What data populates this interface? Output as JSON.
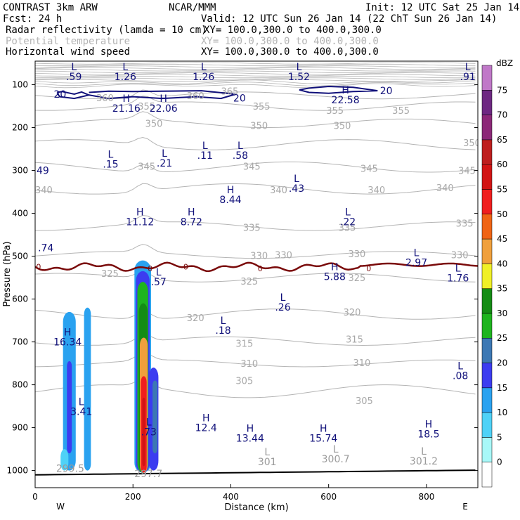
{
  "header": {
    "model": "CONTRAST  3km ARW",
    "org": "NCAR/MMM",
    "init": "Init: 12 UTC Sat 25 Jan 14",
    "fcst": "Fcst:   24 h",
    "valid": "Valid: 12 UTC Sun 26 Jan 14 (22 ChT Sun 26 Jan 14)",
    "fields": [
      {
        "name": "Radar reflectivity (lamda = 10 cm)",
        "xy": "XY= 100.0,300.0 to 400.0,300.0",
        "color": "#000000"
      },
      {
        "name": "Potential temperature",
        "xy": "XY= 100.0,300.0 to 400.0,300.0",
        "color": "#b4b4b4"
      },
      {
        "name": "Horizontal wind speed",
        "xy": "XY= 100.0,300.0 to 400.0,300.0",
        "color": "#10107a"
      }
    ]
  },
  "chart_data": {
    "type": "cross-section",
    "xlabel": "Distance (km)",
    "ylabel": "Pressure (hPa)",
    "xlim": [
      0,
      905
    ],
    "ylim": [
      1040,
      45
    ],
    "x_ticks": [
      0,
      200,
      400,
      600,
      800
    ],
    "y_ticks": [
      100,
      200,
      300,
      400,
      500,
      600,
      700,
      800,
      900,
      1000
    ],
    "x_ends": [
      "W",
      "E"
    ],
    "colorbar": {
      "unit": "dBZ",
      "levels": [
        0,
        5,
        10,
        15,
        20,
        25,
        30,
        35,
        40,
        45,
        50,
        55,
        60,
        65,
        70,
        75
      ],
      "colors": [
        "#ffffff",
        "#a8f8f8",
        "#4fd2f7",
        "#2aa2f0",
        "#3c3cf0",
        "#3c78b4",
        "#1eb41e",
        "#148c14",
        "#f0f028",
        "#f0a03c",
        "#f06414",
        "#f01e1e",
        "#d21414",
        "#be1e1e",
        "#8c2878",
        "#6e2882",
        "#c078c8"
      ]
    },
    "theta_labels": [
      {
        "x": 125,
        "p": 130,
        "v": "360"
      },
      {
        "x": 310,
        "p": 125,
        "v": "360"
      },
      {
        "x": 380,
        "p": 115,
        "v": "365"
      },
      {
        "x": 210,
        "p": 150,
        "v": "355"
      },
      {
        "x": 445,
        "p": 150,
        "v": "355"
      },
      {
        "x": 595,
        "p": 160,
        "v": "355"
      },
      {
        "x": 730,
        "p": 160,
        "v": "355"
      },
      {
        "x": 225,
        "p": 190,
        "v": "350"
      },
      {
        "x": 440,
        "p": 195,
        "v": "350"
      },
      {
        "x": 610,
        "p": 195,
        "v": "350"
      },
      {
        "x": 875,
        "p": 235,
        "v": "350"
      },
      {
        "x": 210,
        "p": 290,
        "v": "345"
      },
      {
        "x": 425,
        "p": 290,
        "v": "345"
      },
      {
        "x": 665,
        "p": 295,
        "v": "345"
      },
      {
        "x": 865,
        "p": 300,
        "v": "345"
      },
      {
        "x": 480,
        "p": 345,
        "v": "340"
      },
      {
        "x": 680,
        "p": 345,
        "v": "340"
      },
      {
        "x": 820,
        "p": 340,
        "v": "340"
      },
      {
        "x": 0,
        "p": 345,
        "v": "340"
      },
      {
        "x": 425,
        "p": 433,
        "v": "335"
      },
      {
        "x": 620,
        "p": 433,
        "v": "335"
      },
      {
        "x": 860,
        "p": 423,
        "v": "335"
      },
      {
        "x": 440,
        "p": 498,
        "v": "330"
      },
      {
        "x": 490,
        "p": 497,
        "v": "330"
      },
      {
        "x": 640,
        "p": 494,
        "v": "330"
      },
      {
        "x": 850,
        "p": 497,
        "v": "330"
      },
      {
        "x": 135,
        "p": 540,
        "v": "325"
      },
      {
        "x": 420,
        "p": 558,
        "v": "325"
      },
      {
        "x": 640,
        "p": 550,
        "v": "325"
      },
      {
        "x": 310,
        "p": 643,
        "v": "320"
      },
      {
        "x": 630,
        "p": 630,
        "v": "320"
      },
      {
        "x": 410,
        "p": 703,
        "v": "315"
      },
      {
        "x": 635,
        "p": 693,
        "v": "315"
      },
      {
        "x": 420,
        "p": 750,
        "v": "310"
      },
      {
        "x": 650,
        "p": 748,
        "v": "310"
      },
      {
        "x": 410,
        "p": 790,
        "v": "305"
      },
      {
        "x": 655,
        "p": 837,
        "v": "305"
      }
    ],
    "wind_labels": [
      {
        "x": 38,
        "p": 122,
        "v": "20"
      },
      {
        "x": 405,
        "p": 131,
        "v": "20"
      },
      {
        "x": 705,
        "p": 114,
        "v": "20"
      },
      {
        "x": 2,
        "p": 523,
        "v": "0"
      },
      {
        "x": 230,
        "p": 527,
        "v": "0"
      },
      {
        "x": 303,
        "p": 523,
        "v": "0"
      },
      {
        "x": 455,
        "p": 527,
        "v": "0"
      },
      {
        "x": 677,
        "p": 527,
        "v": "0"
      }
    ],
    "hl_labels": [
      {
        "x": 65,
        "p": 66,
        "t": "L",
        "v": ".59"
      },
      {
        "x": 170,
        "p": 66,
        "t": "L",
        "v": "1.26"
      },
      {
        "x": 330,
        "p": 66,
        "t": "L",
        "v": "1.26"
      },
      {
        "x": 525,
        "p": 66,
        "t": "L",
        "v": "1.52"
      },
      {
        "x": 870,
        "p": 66,
        "t": "L",
        "v": ".91"
      },
      {
        "x": 172,
        "p": 140,
        "t": "H",
        "v": "21.16"
      },
      {
        "x": 248,
        "p": 140,
        "t": "H",
        "v": "22.06"
      },
      {
        "x": 620,
        "p": 120,
        "t": "H",
        "v": "22.58"
      },
      {
        "x": 140,
        "p": 270,
        "t": "L",
        "v": ".15"
      },
      {
        "x": 250,
        "p": 268,
        "t": "L",
        "v": ".21"
      },
      {
        "x": 333,
        "p": 250,
        "t": "L",
        "v": ".11"
      },
      {
        "x": 405,
        "p": 250,
        "t": "L",
        "v": ".58"
      },
      {
        "x": 520,
        "p": 327,
        "t": "L",
        "v": ".43"
      },
      {
        "x": 385,
        "p": 353,
        "t": "H",
        "v": "8.44"
      },
      {
        "x": 200,
        "p": 405,
        "t": "H",
        "v": "11.12"
      },
      {
        "x": 305,
        "p": 405,
        "t": "H",
        "v": "8.72"
      },
      {
        "x": 625,
        "p": 405,
        "t": "L",
        "v": ".22"
      },
      {
        "x": 765,
        "p": 500,
        "t": "L",
        "v": "2.97"
      },
      {
        "x": 238,
        "p": 545,
        "t": "L",
        "v": ".57"
      },
      {
        "x": 598,
        "p": 533,
        "t": "H",
        "v": "5.88"
      },
      {
        "x": 850,
        "p": 536,
        "t": "L",
        "v": "1.76"
      },
      {
        "x": 492,
        "p": 604,
        "t": "L",
        "v": ".26"
      },
      {
        "x": 370,
        "p": 658,
        "t": "L",
        "v": ".18"
      },
      {
        "x": 52,
        "p": 685,
        "t": "H",
        "v": "16.34"
      },
      {
        "x": 855,
        "p": 764,
        "t": "L",
        "v": ".08"
      },
      {
        "x": 80,
        "p": 847,
        "t": "L",
        "v": "3.41"
      },
      {
        "x": 218,
        "p": 895,
        "t": "L",
        "v": ".73"
      },
      {
        "x": 335,
        "p": 885,
        "t": "H",
        "v": "12.4"
      },
      {
        "x": 425,
        "p": 910,
        "t": "H",
        "v": "13.44"
      },
      {
        "x": 575,
        "p": 910,
        "t": "H",
        "v": "15.74"
      },
      {
        "x": 790,
        "p": 900,
        "t": "H",
        "v": "18.5"
      }
    ],
    "theta_hl_labels": [
      {
        "x": 460,
        "p": 965,
        "t": "L",
        "v": "301"
      },
      {
        "x": 600,
        "p": 958,
        "t": "L",
        "v": "300.7"
      },
      {
        "x": 780,
        "p": 963,
        "t": "L",
        "v": "301.2"
      }
    ],
    "partial_labels": [
      {
        "x": 0,
        "p": 300,
        "v": "49",
        "color": "blue"
      },
      {
        "x": 3,
        "p": 480,
        "v": ".74",
        "color": "blue"
      },
      {
        "x": 40,
        "p": 995,
        "v": "299.5",
        "color": "grey"
      },
      {
        "x": 200,
        "p": 1007,
        "v": "297.7",
        "color": "grey"
      }
    ],
    "reflectivity_cells": [
      {
        "x": 70,
        "p_top": 630,
        "p_bot": 1000,
        "half_width_km": 13,
        "dbz": 10
      },
      {
        "x": 70,
        "p_top": 745,
        "p_bot": 960,
        "half_width_km": 5,
        "dbz": 15
      },
      {
        "x": 107,
        "p_top": 620,
        "p_bot": 1000,
        "half_width_km": 7,
        "dbz": 10
      },
      {
        "x": 60,
        "p_top": 950,
        "p_bot": 1000,
        "half_width_km": 8,
        "dbz": 5
      },
      {
        "x": 220,
        "p_top": 510,
        "p_bot": 1005,
        "half_width_km": 17,
        "dbz": 10
      },
      {
        "x": 220,
        "p_top": 535,
        "p_bot": 1005,
        "half_width_km": 14,
        "dbz": 15
      },
      {
        "x": 220,
        "p_top": 560,
        "p_bot": 1005,
        "half_width_km": 11,
        "dbz": 25
      },
      {
        "x": 221,
        "p_top": 610,
        "p_bot": 1005,
        "half_width_km": 9,
        "dbz": 30
      },
      {
        "x": 222,
        "p_top": 690,
        "p_bot": 1005,
        "half_width_km": 8,
        "dbz": 40
      },
      {
        "x": 222,
        "p_top": 780,
        "p_bot": 1005,
        "half_width_km": 6,
        "dbz": 50
      },
      {
        "x": 222,
        "p_top": 830,
        "p_bot": 990,
        "half_width_km": 3,
        "dbz": 55
      },
      {
        "x": 242,
        "p_top": 760,
        "p_bot": 1000,
        "half_width_km": 10,
        "dbz": 15
      },
      {
        "x": 245,
        "p_top": 790,
        "p_bot": 960,
        "half_width_km": 5,
        "dbz": 20
      }
    ]
  }
}
